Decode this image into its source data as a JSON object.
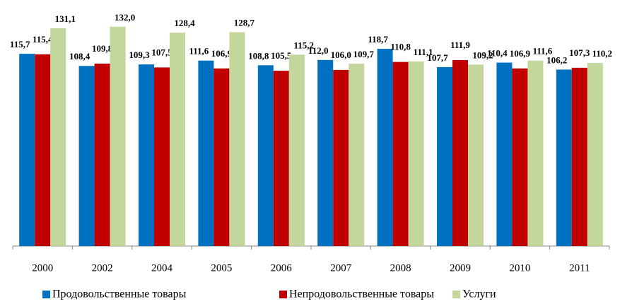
{
  "chart_data": {
    "type": "bar",
    "categories": [
      "2000",
      "2002",
      "2004",
      "2005",
      "2006",
      "2007",
      "2008",
      "2009",
      "2010",
      "2011"
    ],
    "series": [
      {
        "name": "Продовольственные товары",
        "color": "#0070c0",
        "values": [
          115.7,
          108.4,
          109.3,
          111.6,
          108.8,
          112.0,
          118.7,
          107.7,
          110.4,
          106.2
        ],
        "value_labels": [
          "115,7",
          "108,4",
          "109,3",
          "111,6",
          "108,8",
          "112,0",
          "118,7",
          "107,7",
          "110,4",
          "106,2"
        ]
      },
      {
        "name": "Непродовольственные товары",
        "color": "#c00000",
        "values": [
          115.4,
          109.8,
          107.5,
          106.9,
          105.5,
          106.0,
          110.8,
          111.9,
          106.9,
          107.3
        ],
        "value_labels": [
          "115,4",
          "109,8",
          "107,5",
          "106,9",
          "105,5",
          "106,0",
          "110,8",
          "111,9",
          "106,9",
          "107,3"
        ]
      },
      {
        "name": "Услуги",
        "color": "#c3d69b",
        "values": [
          131.1,
          132.0,
          128.4,
          128.7,
          115.2,
          109.7,
          111.1,
          109.2,
          111.6,
          110.2
        ],
        "value_labels": [
          "131,1",
          "132,0",
          "128,4",
          "128,7",
          "115,2",
          "109,7",
          "111,1",
          "109,2",
          "111,6",
          "110,2"
        ]
      }
    ],
    "ylim": [
      0,
      140
    ],
    "legend": "bottom"
  }
}
